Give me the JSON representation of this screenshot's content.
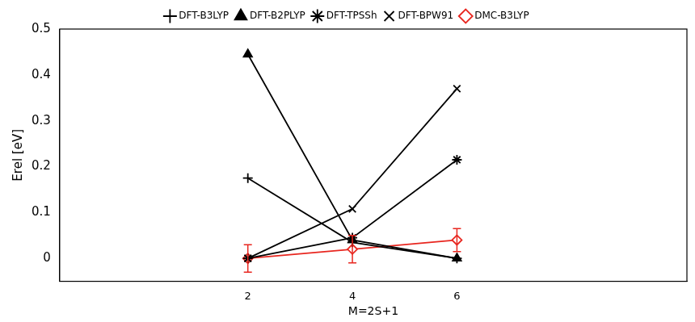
{
  "chart_data": {
    "type": "line",
    "x_label": "M=2S+1",
    "y_label": "Erel [eV]",
    "x": [
      2,
      4,
      6
    ],
    "xlim": [
      -1.6,
      10.4
    ],
    "xticks": [
      2,
      4,
      6
    ],
    "ylim": [
      -0.05,
      0.5
    ],
    "yticks": [
      0,
      0.1,
      0.2,
      0.3,
      0.4,
      0.5
    ],
    "legend": "top",
    "grid": false,
    "series": [
      {
        "name": "DFT-B3LYP",
        "color": "#000000",
        "marker": "plus",
        "line_style": "solid",
        "values": [
          0.175,
          0.035,
          0.0
        ]
      },
      {
        "name": "DFT-B2PLYP",
        "color": "#000000",
        "marker": "triangle",
        "line_style": "solid",
        "values": [
          0.445,
          0.04,
          0.0
        ]
      },
      {
        "name": "DFT-TPSSh",
        "color": "#000000",
        "marker": "asterisk",
        "line_style": "solid",
        "values": [
          0.0,
          0.045,
          0.215
        ]
      },
      {
        "name": "DFT-BPW91",
        "color": "#000000",
        "marker": "x",
        "line_style": "solid",
        "values": [
          0.0,
          0.108,
          0.37
        ]
      },
      {
        "name": "DMC-B3LYP",
        "color": "#e8261f",
        "marker": "diamond",
        "line_style": "solid",
        "values": [
          0.0,
          0.02,
          0.04
        ],
        "errors": [
          0.03,
          0.03,
          0.025
        ]
      }
    ]
  }
}
